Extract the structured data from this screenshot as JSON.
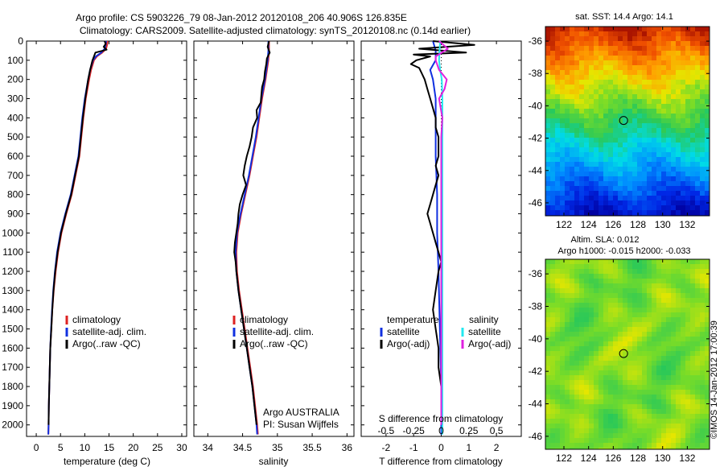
{
  "header": {
    "title_line1": "Argo profile: CS 5903226_79 08-Jan-2012 20120108_206 40.906S 126.835E",
    "title_line2": "Climatology: CARS2009. Satellite-adjusted climatology: synTS_20120108.nc (0.14d earlier)"
  },
  "side_text": "©IMOS 14-Jan-2012 17:00:39",
  "colors": {
    "climatology": "#dd2222",
    "satellite": "#1030e0",
    "argo": "#000000",
    "salinity_satellite": "#22e8f0",
    "salinity_argo": "#e020e0"
  },
  "chart_data": [
    {
      "type": "line",
      "id": "temperature",
      "xlabel": "temperature (deg C)",
      "xlim": [
        -2,
        31
      ],
      "xticks": [
        0,
        5,
        10,
        15,
        20,
        25,
        30
      ],
      "ylim": [
        2060,
        0
      ],
      "yticks": [
        0,
        100,
        200,
        300,
        400,
        500,
        600,
        700,
        800,
        900,
        1000,
        1100,
        1200,
        1300,
        1400,
        1500,
        1600,
        1700,
        1800,
        1900,
        2000
      ],
      "legend": [
        "climatology",
        "satellite-adj. clim.",
        "Argo(..raw -QC)"
      ],
      "legend_placement": "lower-right",
      "series": [
        {
          "name": "climatology",
          "color": "#dd2222",
          "depth": [
            0,
            20,
            40,
            60,
            80,
            100,
            150,
            200,
            300,
            400,
            500,
            600,
            700,
            800,
            900,
            1000,
            1100,
            1200,
            1300,
            1400,
            1500,
            1600,
            1700,
            1800,
            1900,
            2000,
            2050
          ],
          "values": [
            14.7,
            14.6,
            14.4,
            13.6,
            12.5,
            11.9,
            11.3,
            10.9,
            10.2,
            9.7,
            9.3,
            8.9,
            8.1,
            7.3,
            6.2,
            5.2,
            4.5,
            4.0,
            3.6,
            3.3,
            3.1,
            2.9,
            2.8,
            2.7,
            2.6,
            2.55,
            2.5
          ]
        },
        {
          "name": "satellite-adj. clim.",
          "color": "#1030e0",
          "depth": [
            0,
            20,
            40,
            60,
            80,
            100,
            150,
            200,
            300,
            400,
            500,
            600,
            700,
            800,
            900,
            1000,
            1100,
            1200,
            1300,
            1400,
            1500,
            1600,
            1700,
            1800,
            1900,
            2000,
            2050
          ],
          "values": [
            14.4,
            14.3,
            14.1,
            13.4,
            12.3,
            11.7,
            11.1,
            10.7,
            10.0,
            9.5,
            9.1,
            8.7,
            7.9,
            7.1,
            6.0,
            5.0,
            4.3,
            3.85,
            3.5,
            3.25,
            3.05,
            2.9,
            2.8,
            2.7,
            2.6,
            2.55,
            2.5
          ]
        },
        {
          "name": "Argo(..raw -QC)",
          "color": "#000000",
          "depth": [
            0,
            15,
            30,
            45,
            60,
            80,
            100,
            150,
            200,
            300,
            400,
            500,
            600,
            700,
            800,
            900,
            1000,
            1100,
            1200,
            1300,
            1400,
            1500,
            1600,
            1700,
            1800,
            1900,
            2000
          ],
          "values": [
            14.1,
            14.3,
            13.9,
            14.5,
            12.2,
            11.9,
            11.6,
            11.1,
            10.7,
            10.1,
            9.6,
            9.2,
            8.8,
            8.0,
            7.2,
            6.1,
            5.1,
            4.4,
            3.9,
            3.55,
            3.3,
            3.1,
            2.9,
            2.8,
            2.7,
            2.6,
            2.55
          ]
        }
      ]
    },
    {
      "type": "line",
      "id": "salinity",
      "xlabel": "salinity",
      "xlim": [
        33.8,
        36.1
      ],
      "xticks": [
        34,
        34.5,
        35,
        35.5,
        36
      ],
      "ylim": [
        2060,
        0
      ],
      "legend": [
        "climatology",
        "satellite-adj. clim.",
        "Argo(..raw -QC)"
      ],
      "legend_placement": "lower-right",
      "annotation_line1": "Argo AUSTRALIA",
      "annotation_line2": "PI: Susan Wijffels",
      "series": [
        {
          "name": "climatology",
          "color": "#dd2222",
          "depth": [
            0,
            50,
            100,
            200,
            300,
            400,
            500,
            600,
            700,
            800,
            900,
            1000,
            1100,
            1200,
            1300,
            1400,
            1500,
            1600,
            1700,
            1800,
            1900,
            2000,
            2050
          ],
          "values": [
            34.88,
            34.88,
            34.87,
            34.83,
            34.78,
            34.74,
            34.7,
            34.65,
            34.6,
            34.54,
            34.48,
            34.43,
            34.41,
            34.42,
            34.45,
            34.49,
            34.53,
            34.57,
            34.61,
            34.65,
            34.68,
            34.71,
            34.72
          ]
        },
        {
          "name": "satellite-adj. clim.",
          "color": "#1030e0",
          "depth": [
            0,
            50,
            100,
            200,
            300,
            400,
            500,
            600,
            700,
            800,
            900,
            1000,
            1100,
            1200,
            1300,
            1400,
            1500,
            1600,
            1700,
            1800,
            1900,
            2000,
            2050
          ],
          "values": [
            34.87,
            34.87,
            34.86,
            34.82,
            34.77,
            34.73,
            34.69,
            34.64,
            34.59,
            34.53,
            34.47,
            34.42,
            34.4,
            34.41,
            34.44,
            34.48,
            34.52,
            34.56,
            34.6,
            34.64,
            34.67,
            34.7,
            34.71
          ]
        },
        {
          "name": "Argo(..raw -QC)",
          "color": "#000000",
          "depth": [
            0,
            30,
            60,
            90,
            120,
            160,
            200,
            240,
            280,
            320,
            360,
            400,
            450,
            500,
            550,
            600,
            650,
            700,
            750,
            800,
            850,
            900,
            950,
            1000,
            1050,
            1100,
            1150,
            1200,
            1300,
            1400,
            1500,
            1600,
            1700,
            1800,
            1900,
            2000
          ],
          "values": [
            34.88,
            34.86,
            34.89,
            34.85,
            34.84,
            34.82,
            34.81,
            34.78,
            34.77,
            34.76,
            34.7,
            34.71,
            34.65,
            34.63,
            34.6,
            34.56,
            34.53,
            34.51,
            34.55,
            34.5,
            34.46,
            34.44,
            34.43,
            34.41,
            34.39,
            34.38,
            34.4,
            34.41,
            34.44,
            34.48,
            34.52,
            34.56,
            34.6,
            34.64,
            34.67,
            34.7
          ]
        }
      ]
    },
    {
      "type": "line",
      "id": "difference",
      "xlabel": "T difference from climatology",
      "xlabel_top": "S difference from climatology",
      "xlim": [
        -2.9,
        2.9
      ],
      "xticks_T": [
        -2,
        -1,
        0,
        1,
        2
      ],
      "xticks_S": [
        -0.5,
        -0.25,
        0,
        0.25,
        0.5
      ],
      "xticks_S_labels": [
        "-0.5",
        "-0.25",
        "0",
        "0.25",
        "0.5"
      ],
      "s_scale": 4,
      "ylim": [
        2060,
        0
      ],
      "legend_temperature_title": "temperature",
      "legend_salinity_title": "salinity",
      "legend": [
        "satellite",
        "Argo(-adj)",
        "satellite",
        "Argo(-adj)"
      ],
      "legend_placement": "lower-center",
      "series": [
        {
          "name": "satellite",
          "quantity": "T",
          "color": "#1030e0",
          "depth": [
            0,
            50,
            100,
            150,
            200,
            300,
            400,
            500,
            600,
            800,
            1000,
            1200,
            1500,
            1800,
            2050
          ],
          "values": [
            -0.3,
            -0.2,
            -0.2,
            -0.4,
            -0.3,
            -0.2,
            -0.2,
            -0.2,
            -0.2,
            -0.15,
            -0.15,
            -0.1,
            -0.05,
            0,
            0
          ]
        },
        {
          "name": "Argo(-adj)",
          "quantity": "T",
          "color": "#000000",
          "depth": [
            0,
            20,
            40,
            60,
            70,
            80,
            100,
            120,
            140,
            170,
            200,
            250,
            300,
            350,
            400,
            450,
            500,
            550,
            600,
            650,
            700,
            750,
            800,
            850,
            900,
            950,
            1000,
            1050,
            1100,
            1150,
            1200,
            1300,
            1400,
            1500,
            1600,
            1700,
            1800,
            1900,
            2000
          ],
          "values": [
            -0.3,
            1.2,
            -0.8,
            0.9,
            -1.0,
            -0.4,
            -0.9,
            -1.1,
            -0.8,
            -0.7,
            -0.6,
            -0.5,
            -0.4,
            -0.3,
            -0.2,
            -0.2,
            -0.1,
            -0.1,
            -0.1,
            -0.2,
            -0.1,
            -0.2,
            -0.3,
            -0.4,
            -0.5,
            -0.4,
            -0.3,
            -0.2,
            -0.1,
            0,
            -0.1,
            -0.2,
            -0.3,
            -0.2,
            -0.1,
            -0.1,
            0,
            0,
            0
          ]
        },
        {
          "name": "satellite",
          "quantity": "S",
          "color": "#22e8f0",
          "depth": [
            0,
            50,
            100,
            150,
            200,
            300,
            400,
            500,
            700,
            900,
            1100,
            1300,
            1500,
            1700,
            1900,
            2050
          ],
          "values": [
            -0.01,
            -0.015,
            -0.02,
            -0.01,
            0.005,
            0.01,
            0.01,
            0.01,
            0.01,
            0.01,
            0.01,
            0.01,
            0.01,
            0.01,
            0.01,
            0.01
          ]
        },
        {
          "name": "Argo(-adj)",
          "quantity": "S",
          "color": "#e020e0",
          "depth": [
            0,
            40,
            80,
            100,
            150,
            200,
            250,
            300,
            400,
            500,
            600,
            800,
            1000,
            1200,
            1400,
            1600,
            1800,
            2000
          ],
          "values": [
            -0.02,
            0.06,
            -0.05,
            -0.05,
            -0.02,
            0.05,
            0.03,
            -0.02,
            0.01,
            0.0,
            0.0,
            0.0,
            0.0,
            0.0,
            0.0,
            0.0,
            0.0,
            0.0
          ]
        }
      ]
    },
    {
      "type": "heatmap",
      "id": "sst_map",
      "title": "sat. SST: 14.4 Argo: 14.1",
      "xlim": [
        120.5,
        133.8
      ],
      "ylim": [
        -46.8,
        -35.1
      ],
      "xticks": [
        122,
        124,
        126,
        128,
        130,
        132
      ],
      "yticks": [
        -36,
        -38,
        -40,
        -42,
        -44,
        -46
      ],
      "marker": {
        "lon": 126.835,
        "lat": -40.906
      }
    },
    {
      "type": "heatmap",
      "id": "sla_map",
      "title_line1": "Altim. SLA: 0.012",
      "title_line2": "Argo h1000: -0.015 h2000: -0.033",
      "xlim": [
        120.5,
        133.8
      ],
      "ylim": [
        -46.8,
        -35.1
      ],
      "xticks": [
        122,
        124,
        126,
        128,
        130,
        132
      ],
      "yticks": [
        -36,
        -38,
        -40,
        -42,
        -44,
        -46
      ],
      "marker": {
        "lon": 126.835,
        "lat": -40.906
      }
    }
  ]
}
